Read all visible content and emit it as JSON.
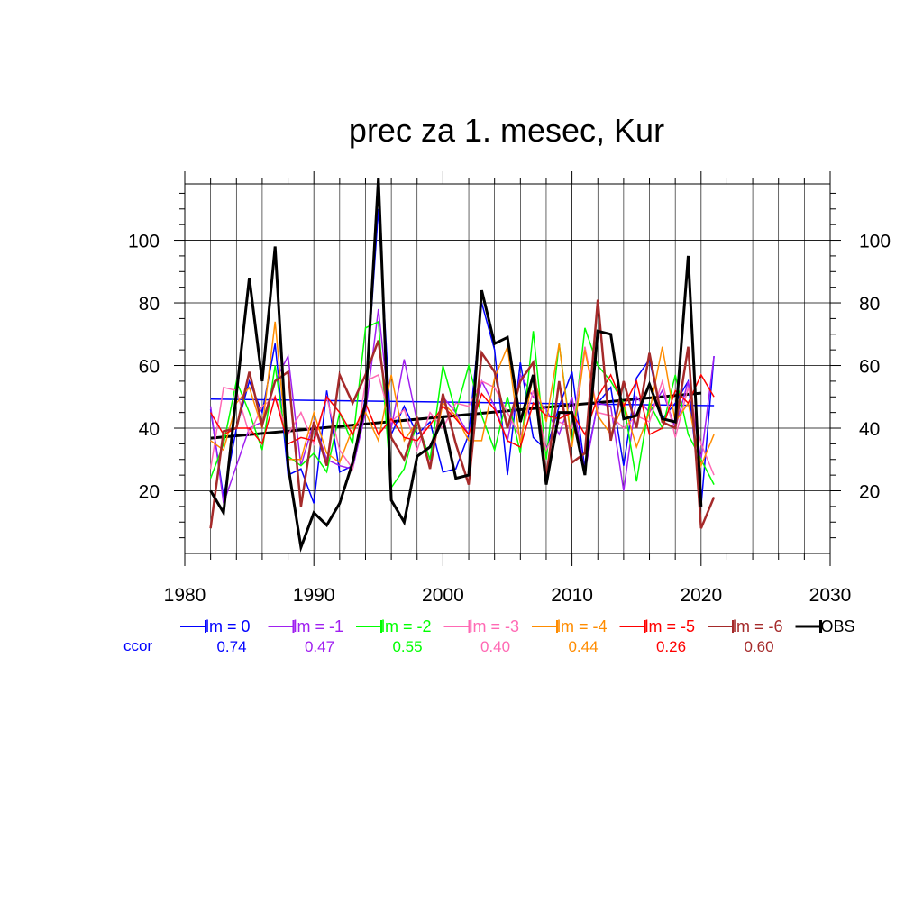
{
  "chart_data": {
    "type": "line",
    "title": "prec za 1. mesec, Kur",
    "xlabel": "",
    "ylabel": "",
    "xlim": [
      1980,
      2030
    ],
    "ylim": [
      0,
      118
    ],
    "x_ticks": [
      1980,
      1990,
      2000,
      2010,
      2020,
      2030
    ],
    "y_ticks": [
      20,
      40,
      60,
      80,
      100
    ],
    "grid": true,
    "legend_position": "bottom",
    "ccor_label": "ccor",
    "x": [
      1982,
      1983,
      1984,
      1985,
      1986,
      1987,
      1988,
      1989,
      1990,
      1991,
      1992,
      1993,
      1994,
      1995,
      1996,
      1997,
      1998,
      1999,
      2000,
      2001,
      2002,
      2003,
      2004,
      2005,
      2006,
      2007,
      2008,
      2009,
      2010,
      2011,
      2012,
      2013,
      2014,
      2015,
      2016,
      2017,
      2018,
      2019,
      2020,
      2021
    ],
    "series": [
      {
        "name": "lm = 0",
        "ccor": "0.74",
        "color": "#0000ff",
        "width": 1.5,
        "values": [
          46,
          18,
          40,
          55,
          45,
          67,
          25,
          27,
          16,
          52,
          26,
          28,
          50,
          110,
          38,
          47,
          38,
          42,
          26,
          27,
          38,
          80,
          65,
          25,
          61,
          37,
          33,
          47,
          58,
          27,
          48,
          53,
          28,
          56,
          62,
          43,
          48,
          55,
          15,
          63
        ],
        "trend": [
          49.3,
          47.2
        ]
      },
      {
        "name": "lm = -1",
        "ccor": "0.47",
        "color": "#a020f0",
        "width": 1.5,
        "values": [
          47,
          16,
          28,
          40,
          42,
          55,
          63,
          28,
          42,
          30,
          28,
          27,
          45,
          78,
          40,
          62,
          42,
          30,
          50,
          45,
          38,
          55,
          47,
          36,
          57,
          50,
          46,
          38,
          50,
          26,
          48,
          47,
          20,
          50,
          45,
          52,
          40,
          55,
          30,
          63
        ]
      },
      {
        "name": "lm = -2",
        "ccor": "0.55",
        "color": "#00ff00",
        "width": 1.5,
        "values": [
          24,
          35,
          55,
          45,
          33,
          60,
          31,
          28,
          32,
          26,
          45,
          35,
          72,
          74,
          21,
          27,
          42,
          30,
          60,
          45,
          60,
          44,
          33,
          50,
          32,
          71,
          30,
          67,
          35,
          72,
          60,
          55,
          48,
          23,
          48,
          40,
          57,
          38,
          30,
          22
        ]
      },
      {
        "name": "lm = -3",
        "ccor": "0.40",
        "color": "#ff69b4",
        "width": 1.5,
        "values": [
          27,
          53,
          52,
          38,
          47,
          50,
          38,
          45,
          35,
          50,
          33,
          27,
          55,
          57,
          42,
          46,
          33,
          45,
          40,
          48,
          47,
          55,
          53,
          45,
          37,
          52,
          33,
          42,
          40,
          66,
          45,
          44,
          40,
          44,
          42,
          55,
          37,
          53,
          35,
          25
        ]
      },
      {
        "name": "lm = -4",
        "ccor": "0.44",
        "color": "#ff8c00",
        "width": 1.5,
        "values": [
          36,
          33,
          48,
          53,
          40,
          74,
          30,
          30,
          45,
          32,
          29,
          40,
          45,
          36,
          57,
          36,
          42,
          28,
          48,
          44,
          36,
          36,
          56,
          66,
          35,
          57,
          42,
          67,
          34,
          65,
          44,
          38,
          48,
          34,
          45,
          66,
          42,
          48,
          28,
          38
        ]
      },
      {
        "name": "lm = -5",
        "ccor": "0.26",
        "color": "#ff0000",
        "width": 1.5,
        "values": [
          45,
          38,
          40,
          40,
          35,
          50,
          35,
          37,
          36,
          50,
          45,
          38,
          48,
          38,
          43,
          37,
          36,
          41,
          47,
          43,
          38,
          51,
          46,
          36,
          34,
          48,
          44,
          43,
          45,
          38,
          50,
          57,
          47,
          55,
          38,
          40,
          52,
          48,
          57,
          50
        ]
      },
      {
        "name": "lm = -6",
        "ccor": "0.60",
        "color": "#a52a2a",
        "width": 2.5,
        "values": [
          8,
          39,
          40,
          58,
          41,
          55,
          58,
          15,
          42,
          28,
          57,
          48,
          57,
          68,
          37,
          30,
          43,
          27,
          51,
          35,
          22,
          64,
          58,
          40,
          55,
          61,
          24,
          55,
          29,
          32,
          81,
          36,
          55,
          40,
          64,
          42,
          40,
          66,
          8,
          18
        ]
      },
      {
        "name": "OBS",
        "ccor": "",
        "color": "#000000",
        "width": 3,
        "values": [
          20,
          13,
          51,
          88,
          55,
          98,
          28,
          2,
          13,
          9,
          16,
          29,
          48,
          120,
          17,
          10,
          31,
          34,
          43,
          24,
          25,
          84,
          67,
          69,
          42,
          57,
          22,
          45,
          45,
          25,
          71,
          70,
          43,
          44,
          54,
          43,
          42,
          95,
          15,
          null
        ],
        "trend": [
          36.8,
          51.2
        ]
      }
    ]
  }
}
